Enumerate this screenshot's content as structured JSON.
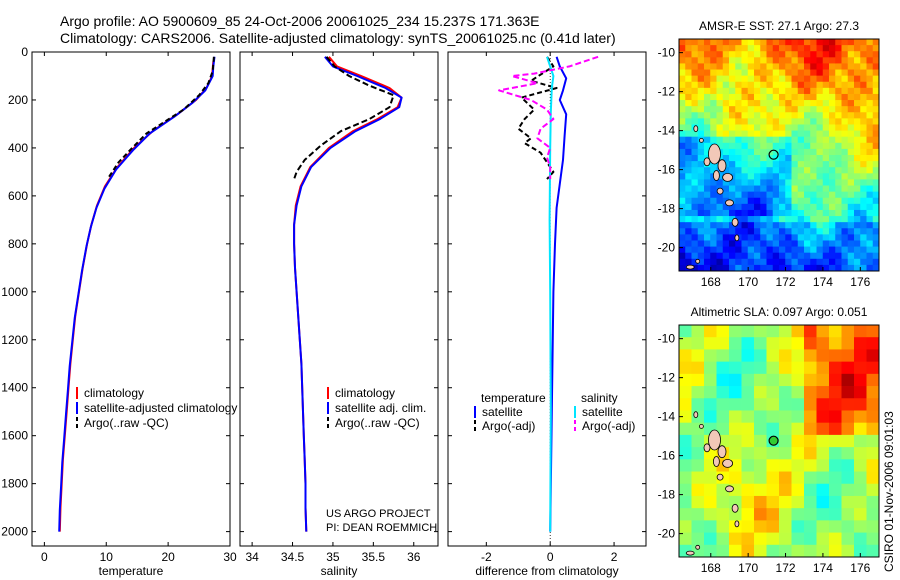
{
  "header": {
    "line1": "Argo profile: AO 5900609_85 24-Oct-2006 20061025_234 15.237S 171.363E",
    "line2": "Climatology: CARS2006. Satellite-adjusted climatology: synTS_20061025.nc (0.41d later)"
  },
  "credits": {
    "project": "US ARGO PROJECT",
    "pi": "PI: DEAN ROEMMICH",
    "stamp": "CSIRO 01-Nov-2006 09:01:03"
  },
  "colors": {
    "clim": "#ff0000",
    "sat": "#0000ff",
    "argo": "#000000",
    "sal_sat": "#00e5ff",
    "sal_argo": "#ff00ff"
  },
  "chart_data": [
    {
      "type": "line",
      "xlabel": "temperature",
      "ylabel": "",
      "xlim": [
        -2,
        30
      ],
      "ylim": [
        2060,
        0
      ],
      "xticks": [
        "0",
        "10",
        "20",
        "30"
      ],
      "xtick_vals": [
        0,
        10,
        20,
        30
      ],
      "yticks": [
        "0",
        "200",
        "400",
        "600",
        "800",
        "1000",
        "1200",
        "1400",
        "1600",
        "1800",
        "2000"
      ],
      "ytick_vals": [
        0,
        200,
        400,
        600,
        800,
        1000,
        1200,
        1400,
        1600,
        1800,
        2000
      ],
      "legend": [
        "climatology",
        "satellite-adjusted climatology",
        "Argo(..raw -QC)"
      ],
      "legend_position": "lower-right",
      "series": [
        {
          "name": "climatology",
          "color": "#ff0000",
          "dash": "",
          "points": [
            [
              27.3,
              40
            ],
            [
              27.1,
              100
            ],
            [
              26.2,
              150
            ],
            [
              24.5,
              200
            ],
            [
              21.5,
              260
            ],
            [
              17.5,
              330
            ],
            [
              14.5,
              400
            ],
            [
              11.8,
              480
            ],
            [
              9.8,
              560
            ],
            [
              8.5,
              640
            ],
            [
              7.6,
              720
            ],
            [
              6.9,
              800
            ],
            [
              6.2,
              900
            ],
            [
              5.6,
              1000
            ],
            [
              5.0,
              1100
            ],
            [
              4.6,
              1200
            ],
            [
              4.2,
              1300
            ],
            [
              3.9,
              1400
            ],
            [
              3.6,
              1500
            ],
            [
              3.3,
              1600
            ],
            [
              3.0,
              1700
            ],
            [
              2.8,
              1800
            ],
            [
              2.6,
              1900
            ],
            [
              2.5,
              2000
            ]
          ]
        },
        {
          "name": "satellite-adjusted climatology",
          "color": "#0000ff",
          "dash": "",
          "points": [
            [
              27.5,
              20
            ],
            [
              27.3,
              60
            ],
            [
              27.2,
              100
            ],
            [
              26.0,
              160
            ],
            [
              24.0,
              210
            ],
            [
              21.0,
              270
            ],
            [
              17.0,
              340
            ],
            [
              14.3,
              410
            ],
            [
              11.6,
              490
            ],
            [
              9.7,
              570
            ],
            [
              8.4,
              650
            ],
            [
              7.5,
              730
            ],
            [
              6.8,
              810
            ],
            [
              6.1,
              910
            ],
            [
              5.5,
              1010
            ],
            [
              4.9,
              1110
            ],
            [
              4.5,
              1210
            ],
            [
              4.1,
              1310
            ],
            [
              3.8,
              1410
            ],
            [
              3.5,
              1510
            ],
            [
              3.2,
              1610
            ],
            [
              2.9,
              1710
            ],
            [
              2.7,
              1810
            ],
            [
              2.5,
              1910
            ],
            [
              2.4,
              2000
            ]
          ]
        },
        {
          "name": "Argo(..raw -QC)",
          "color": "#000000",
          "dash": "5,3",
          "points": [
            [
              27.4,
              20
            ],
            [
              27.2,
              80
            ],
            [
              26.5,
              130
            ],
            [
              25.0,
              180
            ],
            [
              22.5,
              240
            ],
            [
              19.5,
              290
            ],
            [
              16.5,
              340
            ],
            [
              14.2,
              400
            ],
            [
              12.0,
              460
            ],
            [
              10.2,
              530
            ]
          ]
        }
      ]
    },
    {
      "type": "line",
      "xlabel": "salinity",
      "ylabel": "",
      "xlim": [
        33.85,
        36.3
      ],
      "ylim": [
        2060,
        0
      ],
      "xticks": [
        "34",
        "34.5",
        "35",
        "35.5",
        "36"
      ],
      "xtick_vals": [
        34,
        34.5,
        35,
        35.5,
        36
      ],
      "yticks": [],
      "ytick_vals": [
        0,
        200,
        400,
        600,
        800,
        1000,
        1200,
        1400,
        1600,
        1800,
        2000
      ],
      "legend": [
        "climatology",
        "satellite adj. clim.",
        "Argo(..raw -QC)"
      ],
      "legend_position": "lower-right",
      "series": [
        {
          "name": "climatology",
          "color": "#ff0000",
          "dash": "",
          "points": [
            [
              34.95,
              20
            ],
            [
              35.05,
              60
            ],
            [
              35.35,
              100
            ],
            [
              35.7,
              150
            ],
            [
              35.85,
              190
            ],
            [
              35.8,
              230
            ],
            [
              35.55,
              280
            ],
            [
              35.25,
              330
            ],
            [
              34.95,
              400
            ],
            [
              34.72,
              480
            ],
            [
              34.6,
              560
            ],
            [
              34.54,
              640
            ],
            [
              34.52,
              720
            ],
            [
              34.52,
              800
            ],
            [
              34.53,
              900
            ],
            [
              34.55,
              1000
            ],
            [
              34.57,
              1100
            ],
            [
              34.59,
              1200
            ],
            [
              34.61,
              1300
            ],
            [
              34.62,
              1400
            ],
            [
              34.63,
              1500
            ],
            [
              34.64,
              1600
            ],
            [
              34.65,
              1700
            ],
            [
              34.66,
              1800
            ],
            [
              34.66,
              1900
            ],
            [
              34.67,
              2000
            ]
          ]
        },
        {
          "name": "satellite adj. clim.",
          "color": "#0000ff",
          "dash": "",
          "points": [
            [
              34.9,
              20
            ],
            [
              35.0,
              60
            ],
            [
              35.3,
              100
            ],
            [
              35.65,
              150
            ],
            [
              35.85,
              190
            ],
            [
              35.82,
              230
            ],
            [
              35.58,
              280
            ],
            [
              35.28,
              330
            ],
            [
              34.97,
              400
            ],
            [
              34.73,
              480
            ],
            [
              34.61,
              560
            ],
            [
              34.55,
              640
            ],
            [
              34.52,
              720
            ],
            [
              34.52,
              800
            ],
            [
              34.53,
              900
            ],
            [
              34.55,
              1000
            ],
            [
              34.57,
              1100
            ],
            [
              34.59,
              1200
            ],
            [
              34.61,
              1300
            ],
            [
              34.62,
              1400
            ],
            [
              34.63,
              1500
            ],
            [
              34.64,
              1600
            ],
            [
              34.65,
              1700
            ],
            [
              34.66,
              1800
            ],
            [
              34.66,
              1900
            ],
            [
              34.67,
              2000
            ]
          ]
        },
        {
          "name": "Argo(..raw -QC)",
          "color": "#000000",
          "dash": "6,3",
          "points": [
            [
              34.92,
              20
            ],
            [
              35.02,
              60
            ],
            [
              35.2,
              100
            ],
            [
              35.45,
              140
            ],
            [
              35.75,
              180
            ],
            [
              35.7,
              230
            ],
            [
              35.45,
              280
            ],
            [
              35.1,
              330
            ],
            [
              34.85,
              390
            ],
            [
              34.65,
              450
            ],
            [
              34.55,
              500
            ],
            [
              34.52,
              530
            ]
          ]
        }
      ]
    },
    {
      "type": "line",
      "xlabel": "difference from climatology",
      "ylabel": "",
      "xlim": [
        -3.2,
        3.0
      ],
      "ylim": [
        2060,
        0
      ],
      "xticks": [
        "-2",
        "0",
        "2"
      ],
      "xtick_vals": [
        -2,
        0,
        2
      ],
      "yticks": [],
      "ytick_vals": [
        0,
        200,
        400,
        600,
        800,
        1000,
        1200,
        1400,
        1600,
        1800,
        2000
      ],
      "legend": [
        "temperature",
        "satellite",
        "Argo(-adj)",
        "salinity",
        "satellite",
        "Argo(-adj)"
      ],
      "legend_position": "lower-center",
      "series": [
        {
          "name": "temperature satellite",
          "color": "#0000ff",
          "dash": "",
          "points": [
            [
              0.2,
              20
            ],
            [
              0.3,
              60
            ],
            [
              0.5,
              110
            ],
            [
              0.4,
              160
            ],
            [
              0.3,
              200
            ],
            [
              0.5,
              260
            ],
            [
              0.45,
              350
            ],
            [
              0.4,
              450
            ],
            [
              0.3,
              550
            ],
            [
              0.2,
              650
            ],
            [
              0.15,
              800
            ],
            [
              0.1,
              1000
            ],
            [
              0.05,
              1500
            ],
            [
              0.0,
              2000
            ]
          ]
        },
        {
          "name": "temperature Argo(-adj)",
          "color": "#000000",
          "dash": "5,3",
          "points": [
            [
              -0.1,
              20
            ],
            [
              0.1,
              60
            ],
            [
              -0.6,
              120
            ],
            [
              0.2,
              150
            ],
            [
              -0.9,
              190
            ],
            [
              -0.5,
              240
            ],
            [
              -0.8,
              280
            ],
            [
              -1.0,
              320
            ],
            [
              -0.6,
              360
            ],
            [
              -0.8,
              380
            ],
            [
              -0.3,
              420
            ],
            [
              -0.1,
              460
            ],
            [
              0.1,
              500
            ],
            [
              -0.1,
              530
            ]
          ]
        },
        {
          "name": "salinity satellite",
          "color": "#00e5ff",
          "dash": "",
          "points": [
            [
              -0.1,
              20
            ],
            [
              0.0,
              60
            ],
            [
              0.1,
              100
            ],
            [
              0.05,
              150
            ],
            [
              0.02,
              250
            ],
            [
              0.0,
              400
            ],
            [
              -0.02,
              700
            ],
            [
              0.0,
              1000
            ],
            [
              0.02,
              1500
            ],
            [
              0.0,
              2000
            ]
          ]
        },
        {
          "name": "salinity Argo(-adj)",
          "color": "#ff00ff",
          "dash": "6,3",
          "points": [
            [
              1.5,
              20
            ],
            [
              0.6,
              60
            ],
            [
              -0.5,
              90
            ],
            [
              -1.2,
              100
            ],
            [
              -0.4,
              130
            ],
            [
              -1.6,
              160
            ],
            [
              -0.6,
              200
            ],
            [
              -0.1,
              240
            ],
            [
              0.1,
              280
            ],
            [
              -0.3,
              320
            ],
            [
              -0.4,
              360
            ],
            [
              0.0,
              400
            ],
            [
              -0.1,
              440
            ],
            [
              0.0,
              480
            ],
            [
              0.0,
              530
            ]
          ]
        }
      ]
    },
    {
      "type": "heatmap",
      "title": "AMSR-E SST: 27.1 Argo: 27.3",
      "xlim": [
        166.3,
        177
      ],
      "ylim": [
        -21.2,
        -9.3
      ],
      "xticks": [
        "168",
        "170",
        "172",
        "174",
        "176"
      ],
      "xtick_vals": [
        168,
        170,
        172,
        174,
        176
      ],
      "yticks": [
        "-10",
        "-12",
        "-14",
        "-16",
        "-18",
        "-20"
      ],
      "ytick_vals": [
        -10,
        -12,
        -14,
        -16,
        -18,
        -20
      ],
      "profile_location": [
        171.363,
        -15.237
      ]
    },
    {
      "type": "heatmap",
      "title": "Altimetric SLA: 0.097 Argo: 0.051",
      "xlim": [
        166.3,
        177
      ],
      "ylim": [
        -21.2,
        -9.3
      ],
      "xticks": [
        "168",
        "170",
        "172",
        "174",
        "176"
      ],
      "xtick_vals": [
        168,
        170,
        172,
        174,
        176
      ],
      "yticks": [
        "-10",
        "-12",
        "-14",
        "-16",
        "-18",
        "-20"
      ],
      "ytick_vals": [
        -10,
        -12,
        -14,
        -16,
        -18,
        -20
      ],
      "profile_location": [
        171.363,
        -15.237
      ]
    }
  ]
}
